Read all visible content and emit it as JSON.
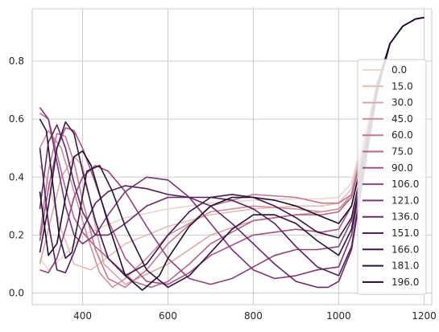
{
  "chart_data": {
    "type": "line",
    "title": "",
    "xlabel": "",
    "ylabel": "",
    "xlim": [
      282,
      1218
    ],
    "ylim": [
      -0.04,
      0.98
    ],
    "xticks": [
      400,
      600,
      800,
      1000,
      1200
    ],
    "yticks": [
      0.0,
      0.2,
      0.4,
      0.6,
      0.8
    ],
    "xtick_labels": [
      "400",
      "600",
      "800",
      "1000",
      "1200"
    ],
    "ytick_labels": [
      "0.0",
      "0.2",
      "0.4",
      "0.6",
      "0.8"
    ],
    "grid": true,
    "legend_position": "right",
    "series": [
      {
        "name": "0.0",
        "color": "#ecd4cf",
        "x": [
          300,
          320,
          350,
          400,
          500,
          600,
          700,
          800,
          900,
          960,
          1000,
          1030,
          1060,
          1090,
          1120,
          1150,
          1180,
          1200
        ],
        "y": [
          0.12,
          0.08,
          0.12,
          0.2,
          0.26,
          0.29,
          0.31,
          0.32,
          0.325,
          0.325,
          0.33,
          0.38,
          0.55,
          0.72,
          0.86,
          0.92,
          0.945,
          0.95
        ]
      },
      {
        "name": "15.0",
        "color": "#e3bdb8",
        "x": [
          300,
          320,
          350,
          380,
          420,
          500,
          600,
          700,
          800,
          900,
          960,
          1000,
          1030,
          1060,
          1090,
          1120,
          1150,
          1180,
          1200
        ],
        "y": [
          0.44,
          0.38,
          0.22,
          0.1,
          0.08,
          0.17,
          0.23,
          0.27,
          0.29,
          0.3,
          0.3,
          0.31,
          0.36,
          0.54,
          0.72,
          0.86,
          0.92,
          0.945,
          0.95
        ]
      },
      {
        "name": "30.0",
        "color": "#d9a6a5",
        "x": [
          300,
          320,
          350,
          380,
          400,
          420,
          450,
          500,
          600,
          700,
          800,
          900,
          960,
          1000,
          1030,
          1060,
          1090,
          1120,
          1150,
          1180,
          1200
        ],
        "y": [
          0.1,
          0.22,
          0.4,
          0.47,
          0.44,
          0.3,
          0.1,
          0.03,
          0.1,
          0.2,
          0.25,
          0.27,
          0.28,
          0.29,
          0.34,
          0.53,
          0.72,
          0.86,
          0.92,
          0.945,
          0.95
        ]
      },
      {
        "name": "45.0",
        "color": "#cd9098",
        "x": [
          300,
          320,
          350,
          380,
          410,
          440,
          470,
          500,
          550,
          600,
          700,
          800,
          900,
          960,
          1000,
          1030,
          1060,
          1090,
          1120,
          1150,
          1180,
          1200
        ],
        "y": [
          0.5,
          0.56,
          0.5,
          0.35,
          0.2,
          0.07,
          0.02,
          0.05,
          0.12,
          0.2,
          0.28,
          0.3,
          0.29,
          0.28,
          0.29,
          0.33,
          0.52,
          0.72,
          0.86,
          0.92,
          0.945,
          0.95
        ]
      },
      {
        "name": "60.0",
        "color": "#c07a8f",
        "x": [
          300,
          320,
          340,
          360,
          380,
          400,
          430,
          460,
          500,
          550,
          600,
          700,
          800,
          900,
          960,
          1000,
          1030,
          1060,
          1090,
          1120,
          1150,
          1180,
          1200
        ],
        "y": [
          0.2,
          0.42,
          0.55,
          0.54,
          0.45,
          0.32,
          0.15,
          0.05,
          0.02,
          0.08,
          0.17,
          0.3,
          0.34,
          0.33,
          0.31,
          0.31,
          0.34,
          0.52,
          0.72,
          0.86,
          0.92,
          0.945,
          0.95
        ]
      },
      {
        "name": "75.0",
        "color": "#b2668a",
        "x": [
          300,
          320,
          340,
          360,
          380,
          400,
          430,
          460,
          490,
          520,
          560,
          600,
          650,
          700,
          800,
          900,
          960,
          1000,
          1030,
          1060,
          1090,
          1120,
          1150,
          1180,
          1200
        ],
        "y": [
          0.62,
          0.6,
          0.48,
          0.36,
          0.26,
          0.21,
          0.16,
          0.12,
          0.08,
          0.04,
          0.02,
          0.04,
          0.1,
          0.17,
          0.25,
          0.27,
          0.27,
          0.28,
          0.33,
          0.52,
          0.72,
          0.86,
          0.92,
          0.945,
          0.95
        ]
      },
      {
        "name": "90.0",
        "color": "#a25384",
        "x": [
          300,
          320,
          340,
          360,
          380,
          400,
          430,
          460,
          500,
          550,
          600,
          650,
          700,
          800,
          900,
          960,
          1000,
          1030,
          1060,
          1090,
          1120,
          1150,
          1180,
          1200
        ],
        "y": [
          0.18,
          0.36,
          0.5,
          0.57,
          0.56,
          0.5,
          0.38,
          0.25,
          0.12,
          0.04,
          0.03,
          0.07,
          0.13,
          0.2,
          0.22,
          0.21,
          0.22,
          0.3,
          0.5,
          0.72,
          0.86,
          0.92,
          0.945,
          0.95
        ]
      },
      {
        "name": "106.0",
        "color": "#90437b",
        "x": [
          300,
          320,
          340,
          360,
          380,
          400,
          430,
          460,
          500,
          550,
          600,
          650,
          700,
          750,
          800,
          850,
          900,
          950,
          1000,
          1030,
          1060,
          1090,
          1120,
          1150,
          1180,
          1200
        ],
        "y": [
          0.08,
          0.07,
          0.12,
          0.22,
          0.33,
          0.4,
          0.44,
          0.42,
          0.35,
          0.23,
          0.12,
          0.05,
          0.03,
          0.05,
          0.09,
          0.13,
          0.15,
          0.15,
          0.16,
          0.25,
          0.48,
          0.71,
          0.86,
          0.92,
          0.945,
          0.95
        ]
      },
      {
        "name": "121.0",
        "color": "#7c3671",
        "x": [
          300,
          320,
          340,
          360,
          380,
          400,
          430,
          460,
          500,
          550,
          600,
          650,
          700,
          750,
          800,
          850,
          900,
          950,
          1000,
          1030,
          1060,
          1090,
          1120,
          1150,
          1180,
          1200
        ],
        "y": [
          0.64,
          0.6,
          0.45,
          0.3,
          0.2,
          0.17,
          0.2,
          0.27,
          0.35,
          0.4,
          0.39,
          0.33,
          0.24,
          0.15,
          0.08,
          0.05,
          0.06,
          0.08,
          0.09,
          0.2,
          0.45,
          0.7,
          0.86,
          0.92,
          0.945,
          0.95
        ]
      },
      {
        "name": "136.0",
        "color": "#672a64",
        "x": [
          300,
          320,
          340,
          360,
          380,
          400,
          430,
          460,
          500,
          550,
          600,
          650,
          700,
          750,
          800,
          850,
          900,
          950,
          975,
          1000,
          1030,
          1060,
          1090,
          1120,
          1150,
          1180,
          1200
        ],
        "y": [
          0.29,
          0.52,
          0.58,
          0.5,
          0.38,
          0.28,
          0.2,
          0.2,
          0.24,
          0.3,
          0.33,
          0.33,
          0.3,
          0.24,
          0.17,
          0.1,
          0.04,
          0.02,
          0.02,
          0.04,
          0.15,
          0.42,
          0.69,
          0.86,
          0.92,
          0.945,
          0.95
        ]
      },
      {
        "name": "151.0",
        "color": "#531f56",
        "x": [
          300,
          320,
          340,
          360,
          380,
          400,
          430,
          460,
          500,
          550,
          600,
          650,
          700,
          750,
          800,
          850,
          900,
          950,
          1000,
          1030,
          1060,
          1090,
          1120,
          1150,
          1180,
          1200
        ],
        "y": [
          0.5,
          0.24,
          0.08,
          0.07,
          0.14,
          0.22,
          0.31,
          0.35,
          0.37,
          0.36,
          0.34,
          0.33,
          0.33,
          0.32,
          0.29,
          0.24,
          0.16,
          0.09,
          0.06,
          0.16,
          0.43,
          0.69,
          0.86,
          0.92,
          0.945,
          0.95
        ]
      },
      {
        "name": "166.0",
        "color": "#3e1748",
        "x": [
          300,
          320,
          340,
          360,
          380,
          400,
          430,
          460,
          500,
          550,
          600,
          650,
          700,
          750,
          800,
          850,
          900,
          950,
          1000,
          1030,
          1060,
          1090,
          1120,
          1150,
          1180,
          1200
        ],
        "y": [
          0.14,
          0.3,
          0.5,
          0.59,
          0.55,
          0.42,
          0.25,
          0.12,
          0.06,
          0.1,
          0.2,
          0.28,
          0.33,
          0.34,
          0.33,
          0.3,
          0.26,
          0.21,
          0.19,
          0.26,
          0.47,
          0.71,
          0.86,
          0.92,
          0.945,
          0.95
        ]
      },
      {
        "name": "181.0",
        "color": "#2d1239",
        "x": [
          300,
          315,
          330,
          345,
          360,
          375,
          390,
          410,
          440,
          470,
          500,
          550,
          600,
          650,
          700,
          750,
          800,
          850,
          900,
          950,
          1000,
          1030,
          1060,
          1090,
          1120,
          1150,
          1180,
          1200
        ],
        "y": [
          0.6,
          0.56,
          0.38,
          0.2,
          0.12,
          0.14,
          0.25,
          0.42,
          0.44,
          0.35,
          0.23,
          0.08,
          0.02,
          0.06,
          0.14,
          0.22,
          0.27,
          0.27,
          0.24,
          0.18,
          0.13,
          0.22,
          0.46,
          0.7,
          0.86,
          0.92,
          0.945,
          0.95
        ]
      },
      {
        "name": "196.0",
        "color": "#1f0e2a",
        "x": [
          300,
          320,
          340,
          360,
          380,
          400,
          420,
          440,
          460,
          500,
          540,
          580,
          600,
          650,
          700,
          750,
          800,
          850,
          900,
          950,
          1000,
          1030,
          1060,
          1090,
          1120,
          1150,
          1180,
          1200
        ],
        "y": [
          0.35,
          0.13,
          0.17,
          0.33,
          0.47,
          0.49,
          0.44,
          0.34,
          0.24,
          0.06,
          0.01,
          0.06,
          0.12,
          0.23,
          0.3,
          0.33,
          0.33,
          0.32,
          0.3,
          0.27,
          0.24,
          0.3,
          0.49,
          0.72,
          0.86,
          0.92,
          0.945,
          0.95
        ]
      }
    ]
  }
}
